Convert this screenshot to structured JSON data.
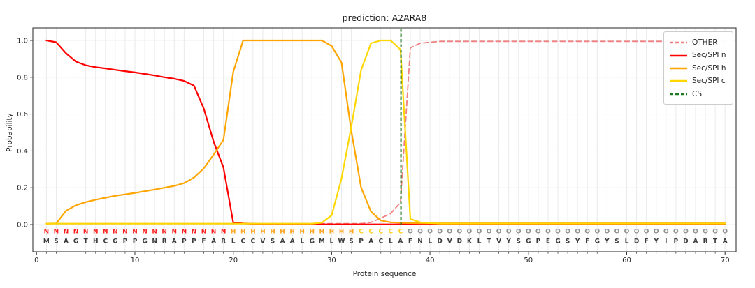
{
  "title": "prediction: A2ARA8",
  "axes": {
    "xlabel": "Protein sequence",
    "ylabel": "Probability",
    "x_ticks": [
      0,
      10,
      20,
      30,
      40,
      50,
      60,
      70
    ],
    "y_ticks": [
      "0.0",
      "0.2",
      "0.4",
      "0.6",
      "0.8",
      "1.0"
    ],
    "grid": true
  },
  "legend": {
    "position": "upper right",
    "items": [
      {
        "label": "OTHER",
        "color": "#f08080",
        "dashed": true
      },
      {
        "label": "Sec/SPI n",
        "color": "#ff0000",
        "dashed": false
      },
      {
        "label": "Sec/SPI h",
        "color": "#ffa500",
        "dashed": false
      },
      {
        "label": "Sec/SPI c",
        "color": "#ffd700",
        "dashed": false
      },
      {
        "label": "CS",
        "color": "#1f7a1f",
        "dashed": true
      }
    ]
  },
  "sequence": {
    "residues": "MSAGTHCGPPGNRAPPFARLCCVSAALGMLWSPACLAFNLDVDKLTVYSGPEGSYFGYSLDFYIPDARTA",
    "annotation": "NNNNNNNNNNNNNNNNNNNHHHHHHHHHHHHHCCCCCOOOOOOOOOOOOOOOOOOOOOOOOOOOOOOOOO",
    "annotation_colors": {
      "N": "#ff1f1f",
      "H": "#ffa51f",
      "C": "#ffd21f",
      "O": "#909090"
    },
    "residue_color": "#3d3d3d"
  },
  "chart_data": {
    "type": "line",
    "title": "prediction: A2ARA8",
    "xlabel": "Protein sequence",
    "ylabel": "Probability",
    "xlim": [
      -0.4,
      71.2
    ],
    "ylim": [
      0.0,
      1.0
    ],
    "x_start": 1,
    "n_positions": 70,
    "cs_position": 37.05,
    "series": [
      {
        "name": "OTHER",
        "color": "#f08080",
        "dashed": true,
        "width": 1.8,
        "values": [
          0.005,
          0.005,
          0.005,
          0.005,
          0.005,
          0.005,
          0.005,
          0.005,
          0.005,
          0.005,
          0.005,
          0.005,
          0.005,
          0.005,
          0.005,
          0.005,
          0.005,
          0.005,
          0.005,
          0.005,
          0.005,
          0.005,
          0.005,
          0.005,
          0.005,
          0.005,
          0.005,
          0.005,
          0.005,
          0.005,
          0.005,
          0.005,
          0.005,
          0.012,
          0.035,
          0.06,
          0.12,
          0.96,
          0.985,
          0.99,
          0.995,
          0.995,
          0.995,
          0.995,
          0.995,
          0.995,
          0.995,
          0.995,
          0.995,
          0.995,
          0.995,
          0.995,
          0.995,
          0.995,
          0.995,
          0.995,
          0.995,
          0.995,
          0.995,
          0.995,
          0.995,
          0.995,
          0.995,
          0.995,
          0.995,
          0.995,
          0.995,
          0.995,
          0.995,
          0.995
        ]
      },
      {
        "name": "Sec/SPI n",
        "color": "#ff0000",
        "dashed": false,
        "width": 2.2,
        "values": [
          1.0,
          0.99,
          0.93,
          0.885,
          0.865,
          0.855,
          0.848,
          0.84,
          0.833,
          0.826,
          0.818,
          0.81,
          0.8,
          0.792,
          0.78,
          0.755,
          0.63,
          0.45,
          0.31,
          0.01,
          0.006,
          0.004,
          0.003,
          0.002,
          0.002,
          0.001,
          0.001,
          0.001,
          0.001,
          0.001,
          0.001,
          0.001,
          0.001,
          0.001,
          0.001,
          0.001,
          0.001,
          0.001,
          0.001,
          0.001,
          0.001,
          0.001,
          0.001,
          0.001,
          0.001,
          0.001,
          0.001,
          0.001,
          0.001,
          0.001,
          0.001,
          0.001,
          0.001,
          0.001,
          0.001,
          0.001,
          0.001,
          0.001,
          0.001,
          0.001,
          0.001,
          0.001,
          0.001,
          0.001,
          0.001,
          0.001,
          0.001,
          0.001,
          0.001,
          0.001
        ]
      },
      {
        "name": "Sec/SPI h",
        "color": "#ffa500",
        "dashed": false,
        "width": 2.2,
        "values": [
          0.005,
          0.006,
          0.075,
          0.105,
          0.122,
          0.135,
          0.146,
          0.156,
          0.164,
          0.172,
          0.181,
          0.19,
          0.2,
          0.21,
          0.225,
          0.255,
          0.305,
          0.38,
          0.46,
          0.83,
          1.0,
          1.0,
          1.0,
          1.0,
          1.0,
          1.0,
          1.0,
          1.0,
          1.0,
          0.97,
          0.88,
          0.51,
          0.2,
          0.07,
          0.022,
          0.012,
          0.01,
          0.008,
          0.007,
          0.007,
          0.007,
          0.007,
          0.007,
          0.007,
          0.007,
          0.007,
          0.007,
          0.007,
          0.007,
          0.007,
          0.007,
          0.007,
          0.007,
          0.007,
          0.007,
          0.007,
          0.007,
          0.007,
          0.007,
          0.007,
          0.007,
          0.007,
          0.007,
          0.007,
          0.007,
          0.007,
          0.007,
          0.007,
          0.007,
          0.007
        ]
      },
      {
        "name": "Sec/SPI c",
        "color": "#ffd700",
        "dashed": false,
        "width": 2.2,
        "values": [
          0.005,
          0.005,
          0.005,
          0.005,
          0.005,
          0.005,
          0.005,
          0.005,
          0.005,
          0.005,
          0.005,
          0.005,
          0.005,
          0.005,
          0.005,
          0.005,
          0.005,
          0.005,
          0.005,
          0.005,
          0.005,
          0.005,
          0.005,
          0.005,
          0.005,
          0.005,
          0.005,
          0.005,
          0.01,
          0.05,
          0.25,
          0.53,
          0.84,
          0.985,
          1.0,
          1.0,
          0.95,
          0.03,
          0.012,
          0.008,
          0.005,
          0.005,
          0.005,
          0.005,
          0.005,
          0.005,
          0.005,
          0.005,
          0.005,
          0.005,
          0.005,
          0.005,
          0.005,
          0.005,
          0.005,
          0.005,
          0.005,
          0.005,
          0.005,
          0.005,
          0.005,
          0.005,
          0.005,
          0.005,
          0.005,
          0.005,
          0.005,
          0.005,
          0.005,
          0.005
        ]
      }
    ],
    "cs_line": {
      "name": "CS",
      "color": "#1f7a1f",
      "dashed": true,
      "width": 2
    }
  }
}
